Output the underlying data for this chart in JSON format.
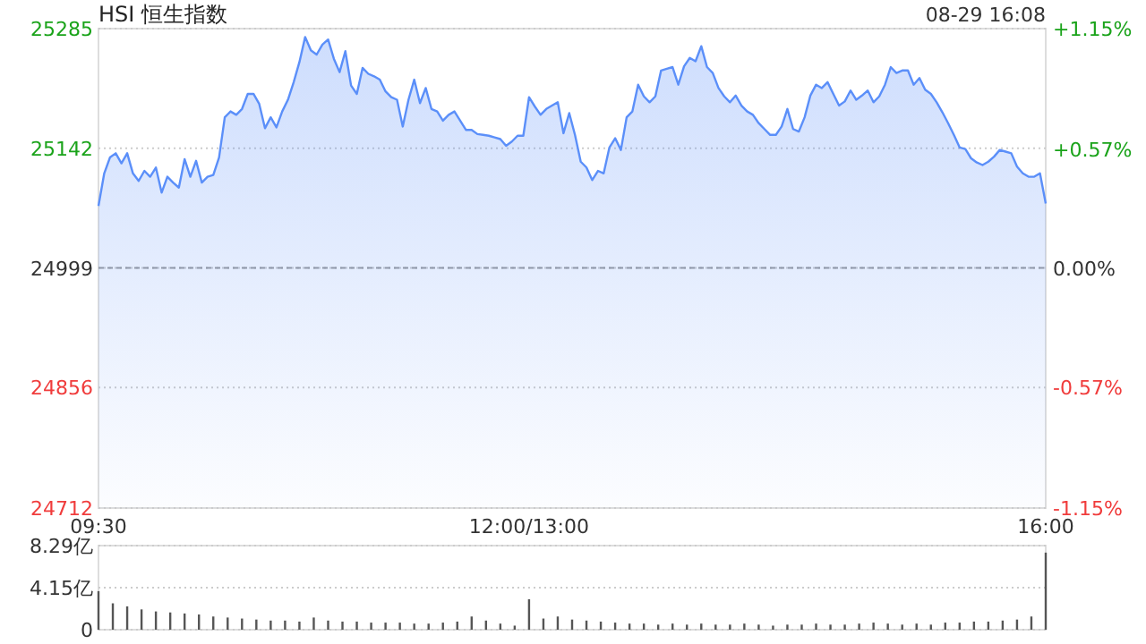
{
  "chart_data": [
    {
      "type": "area",
      "title": "HSI 恒生指数",
      "annotations": [
        "08-29 16:08"
      ],
      "categories": [
        "09:30",
        null,
        null,
        null,
        null,
        null,
        null,
        null,
        null,
        null,
        null,
        null,
        null,
        null,
        null,
        null,
        null,
        null,
        null,
        null,
        null,
        null,
        null,
        null,
        null,
        null,
        null,
        null,
        null,
        null,
        null,
        null,
        null,
        null,
        null,
        null,
        null,
        null,
        null,
        null,
        null,
        null,
        null,
        null,
        null,
        null,
        null,
        null,
        null,
        null,
        null,
        null,
        null,
        null,
        null,
        null,
        null,
        null,
        null,
        null,
        null,
        null,
        null,
        null,
        null,
        null,
        null,
        null,
        null,
        null,
        null,
        null,
        null,
        null,
        null,
        "12:00/13:00",
        null,
        null,
        null,
        null,
        null,
        null,
        null,
        null,
        null,
        null,
        null,
        null,
        null,
        null,
        null,
        null,
        null,
        null,
        null,
        null,
        null,
        null,
        null,
        null,
        null,
        null,
        null,
        null,
        null,
        null,
        null,
        null,
        null,
        null,
        null,
        null,
        null,
        null,
        null,
        null,
        null,
        null,
        null,
        null,
        null,
        null,
        null,
        null,
        null,
        null,
        null,
        null,
        null,
        null,
        null,
        null,
        null,
        null,
        null,
        null,
        null,
        null,
        null,
        null,
        null,
        null,
        null,
        null,
        null,
        null,
        null,
        null,
        null,
        null,
        null,
        null,
        null,
        null,
        null,
        null,
        null,
        null,
        null,
        null,
        null,
        null,
        null,
        null,
        null,
        "16:00"
      ],
      "series": [
        {
          "color": "#5b8ff9",
          "values": [
            25073,
            25112,
            25131,
            25136,
            25124,
            25136,
            25112,
            25103,
            25115,
            25108,
            25119,
            25089,
            25108,
            25101,
            25095,
            25129,
            25108,
            25127,
            25101,
            25108,
            25110,
            25131,
            25179,
            25186,
            25182,
            25189,
            25207,
            25207,
            25195,
            25166,
            25179,
            25167,
            25186,
            25200,
            25221,
            25245,
            25275,
            25259,
            25254,
            25266,
            25272,
            25249,
            25233,
            25258,
            25217,
            25207,
            25238,
            25231,
            25228,
            25224,
            25210,
            25203,
            25200,
            25168,
            25200,
            25224,
            25196,
            25214,
            25189,
            25186,
            25175,
            25182,
            25186,
            25175,
            25164,
            25164,
            25159,
            25158,
            25157,
            25155,
            25153,
            25145,
            25150,
            25157,
            25157,
            25203,
            25192,
            25182,
            25189,
            25193,
            25197,
            25160,
            25184,
            25158,
            25126,
            25119,
            25104,
            25115,
            25112,
            25143,
            25154,
            25140,
            25179,
            25186,
            25218,
            25204,
            25197,
            25204,
            25235,
            25237,
            25239,
            25218,
            25240,
            25250,
            25246,
            25264,
            25239,
            25232,
            25214,
            25204,
            25197,
            25205,
            25193,
            25186,
            25182,
            25172,
            25165,
            25158,
            25158,
            25168,
            25189,
            25165,
            25162,
            25179,
            25205,
            25218,
            25214,
            25221,
            25207,
            25193,
            25198,
            25211,
            25200,
            25205,
            25211,
            25197,
            25204,
            25218,
            25239,
            25232,
            25235,
            25235,
            25218,
            25226,
            25212,
            25207,
            25197,
            25185,
            25172,
            25158,
            25143,
            25141,
            25130,
            25125,
            25122,
            25126,
            25132,
            25140,
            25138,
            25136,
            25120,
            25112,
            25108,
            25108,
            25112,
            25076
          ]
        }
      ],
      "ylim": [
        24712,
        25285
      ],
      "yticks": [
        24712,
        24856,
        24999,
        25142,
        25285
      ],
      "y2lim": [
        -1.15,
        1.15
      ],
      "y2ticks": [
        {
          "value": -1.15,
          "label": "-1.15%"
        },
        {
          "value": -0.57,
          "label": "-0.57%"
        },
        {
          "value": 0,
          "label": "0.00%"
        },
        {
          "value": 0.57,
          "label": "+0.57%"
        },
        {
          "value": 1.15,
          "label": "+1.15%"
        }
      ],
      "ref_lines": [
        {
          "axis": "y",
          "value": 24999,
          "color": "#999999",
          "line_style": "dashed"
        }
      ],
      "grid": "y"
    },
    {
      "type": "bar",
      "categories": [
        null,
        null,
        null,
        null,
        null,
        null,
        null,
        null,
        null,
        null,
        null,
        null,
        null,
        null,
        null,
        null,
        null,
        null,
        null,
        null,
        null,
        null,
        null,
        null,
        null,
        null,
        null,
        null,
        null,
        null,
        null,
        null,
        null,
        null,
        null,
        null,
        null,
        null,
        null,
        null,
        null,
        null,
        null,
        null,
        null,
        null,
        null,
        null,
        null,
        null,
        null,
        null,
        null,
        null,
        null,
        null,
        null,
        null,
        null,
        null,
        null,
        null,
        null,
        null,
        null,
        null,
        null
      ],
      "series": [
        {
          "color": "#555555",
          "values": [
            3.8,
            2.6,
            2.3,
            2.0,
            1.8,
            1.7,
            1.6,
            1.5,
            1.3,
            1.2,
            1.1,
            1.0,
            0.9,
            0.9,
            0.8,
            1.2,
            0.9,
            0.8,
            0.8,
            0.7,
            0.7,
            0.7,
            0.6,
            0.6,
            0.7,
            0.8,
            1.3,
            0.9,
            0.6,
            0.4,
            3.0,
            1.1,
            1.3,
            1.0,
            0.9,
            0.8,
            0.7,
            0.6,
            0.6,
            0.5,
            0.6,
            0.5,
            0.6,
            0.5,
            0.5,
            0.6,
            0.5,
            0.4,
            0.5,
            0.5,
            0.6,
            0.5,
            0.5,
            0.6,
            0.7,
            0.6,
            0.5,
            0.6,
            0.5,
            0.7,
            0.7,
            0.8,
            0.8,
            0.9,
            1.0,
            1.3,
            7.6
          ]
        }
      ],
      "ylim": [
        0,
        8.29
      ],
      "yticks": [
        0,
        {
          "value": 4.15,
          "label": "4.15亿"
        },
        {
          "value": 8.29,
          "label": "8.29亿"
        }
      ],
      "tick_labels": "y",
      "grid": "y"
    }
  ]
}
